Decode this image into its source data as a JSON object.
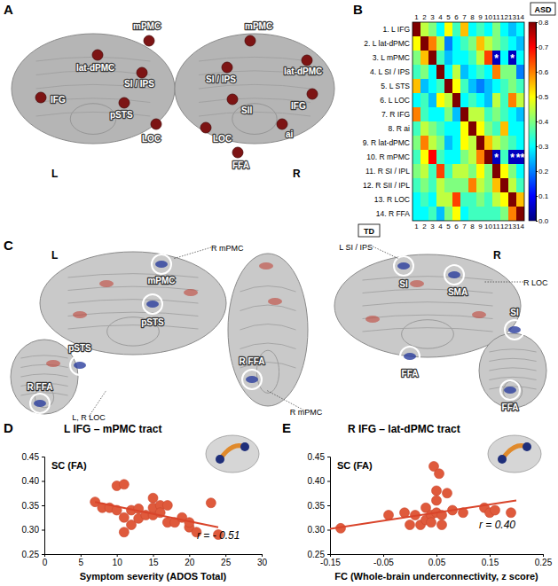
{
  "chart_data": [
    {
      "type": "heatmap",
      "rows": [
        "1. L IFG",
        "2. L lat-dPMC",
        "3. L mPMC",
        "4. L SI / IPS",
        "5. L STS",
        "6. L LOC",
        "7. R IFG",
        "8. R ai",
        "9. R lat-dPMC",
        "10. R mPMC",
        "11. R SI / IPL",
        "12. R SII / IPL",
        "13. R LOC",
        "14. R FFA"
      ],
      "columns": [
        1,
        2,
        3,
        4,
        5,
        6,
        7,
        8,
        9,
        10,
        11,
        12,
        13,
        14
      ],
      "cells": [
        [
          0.8,
          0.45,
          0.4,
          0.3,
          0.5,
          0.35,
          0.55,
          0.3,
          0.35,
          0.3,
          0.4,
          0.3,
          0.25,
          0.3
        ],
        [
          0.5,
          0.8,
          0.6,
          0.45,
          0.2,
          0.3,
          0.35,
          0.4,
          0.55,
          0.45,
          0.4,
          0.35,
          0.3,
          0.25
        ],
        [
          0.4,
          0.55,
          0.8,
          0.35,
          0.25,
          0.3,
          0.3,
          0.35,
          0.45,
          0.65,
          0.05,
          0.3,
          0.05,
          0.3
        ],
        [
          0.35,
          0.4,
          0.3,
          0.8,
          0.3,
          0.45,
          0.25,
          0.3,
          0.35,
          0.3,
          0.6,
          0.4,
          0.4,
          0.2
        ],
        [
          0.55,
          0.25,
          0.3,
          0.35,
          0.8,
          0.5,
          0.35,
          0.25,
          0.2,
          0.25,
          0.3,
          0.35,
          0.4,
          0.35
        ],
        [
          0.3,
          0.35,
          0.25,
          0.5,
          0.45,
          0.8,
          0.3,
          0.35,
          0.3,
          0.25,
          0.45,
          0.35,
          0.6,
          0.45
        ],
        [
          0.6,
          0.35,
          0.3,
          0.3,
          0.4,
          0.25,
          0.8,
          0.45,
          0.45,
          0.35,
          0.4,
          0.35,
          0.3,
          0.25
        ],
        [
          0.35,
          0.45,
          0.4,
          0.35,
          0.3,
          0.3,
          0.5,
          0.8,
          0.5,
          0.4,
          0.35,
          0.55,
          0.3,
          0.3
        ],
        [
          0.4,
          0.6,
          0.45,
          0.4,
          0.25,
          0.3,
          0.5,
          0.45,
          0.8,
          0.55,
          0.45,
          0.4,
          0.35,
          0.3
        ],
        [
          0.35,
          0.5,
          0.7,
          0.35,
          0.3,
          0.3,
          0.4,
          0.45,
          0.6,
          0.8,
          0.05,
          0.35,
          0.05,
          0.05
        ],
        [
          0.4,
          0.45,
          0.35,
          0.65,
          0.35,
          0.45,
          0.45,
          0.4,
          0.5,
          0.4,
          0.8,
          0.5,
          0.4,
          0.3
        ],
        [
          0.35,
          0.4,
          0.35,
          0.45,
          0.4,
          0.4,
          0.4,
          0.6,
          0.45,
          0.4,
          0.55,
          0.8,
          0.45,
          0.35
        ],
        [
          0.3,
          0.35,
          0.3,
          0.45,
          0.45,
          0.65,
          0.35,
          0.35,
          0.4,
          0.35,
          0.45,
          0.5,
          0.8,
          0.55
        ],
        [
          0.3,
          0.3,
          0.35,
          0.25,
          0.4,
          0.5,
          0.3,
          0.35,
          0.35,
          0.35,
          0.35,
          0.4,
          0.6,
          0.8
        ]
      ],
      "colorbar": {
        "range": [
          0,
          0.8
        ],
        "ticks": [
          {
            "value": 0,
            "label": "0.0"
          },
          {
            "value": 0.1,
            "label": "0.1"
          },
          {
            "value": 0.2,
            "label": "0.2"
          },
          {
            "value": 0.3,
            "label": "0.3"
          },
          {
            "value": 0.4,
            "label": "0.4"
          },
          {
            "value": 0.5,
            "label": "0.5"
          },
          {
            "value": 0.6,
            "label": "0.6"
          },
          {
            "value": 0.7,
            "label": "0.7"
          },
          {
            "value": 0.8,
            "label": "0.8"
          }
        ]
      },
      "annotations": [
        {
          "row": 3,
          "col": 11,
          "text": "*"
        },
        {
          "row": 3,
          "col": 13,
          "text": "*"
        },
        {
          "row": 10,
          "col": 11,
          "text": "*"
        },
        {
          "row": 10,
          "col": 13,
          "text": "*"
        },
        {
          "row": 10,
          "col": 14,
          "text": "**"
        }
      ],
      "upper_label": "ASD",
      "lower_label": "TD"
    },
    {
      "type": "scatter",
      "title": "L IFG – mPMC tract",
      "xlabel": "Symptom severity (ADOS Total)",
      "ylabel": "SC (FA)",
      "annotation": "r = - 0.51",
      "xlim": [
        0,
        30
      ],
      "xticks": [
        0,
        5,
        10,
        15,
        20,
        25,
        30
      ],
      "ylim": [
        0.25,
        0.45
      ],
      "yticks": [
        {
          "value": 0.25,
          "label": "0.25"
        },
        {
          "value": 0.3,
          "label": "0.30"
        },
        {
          "value": 0.35,
          "label": "0.35"
        },
        {
          "value": 0.4,
          "label": "0.40"
        },
        {
          "value": 0.45,
          "label": "0.45"
        }
      ],
      "series": [
        {
          "type": "scatter",
          "marker": "circle",
          "color": "#df5a3c",
          "x": [
            7,
            8,
            9,
            10,
            10,
            11,
            11,
            11,
            12,
            12,
            13,
            13,
            14,
            15,
            15,
            15,
            16,
            16,
            17,
            17,
            18,
            19,
            20,
            20,
            21,
            23,
            24
          ],
          "values": [
            0.357,
            0.345,
            0.345,
            0.39,
            0.34,
            0.393,
            0.325,
            0.295,
            0.34,
            0.31,
            0.343,
            0.323,
            0.33,
            0.365,
            0.33,
            0.345,
            0.35,
            0.335,
            0.315,
            0.35,
            0.315,
            0.325,
            0.305,
            0.315,
            0.295,
            0.355,
            0.29
          ]
        },
        {
          "type": "line",
          "line_style": "solid",
          "color": "#d9442a",
          "x": [
            7,
            24
          ],
          "values": [
            0.357,
            0.305
          ]
        }
      ]
    },
    {
      "type": "scatter",
      "title": "R IFG – lat-dPMC tract",
      "xlabel": "FC (Whole-brain underconnectivity, z score)",
      "ylabel": "SC (FA)",
      "annotation": "r = 0.40",
      "xlim": [
        -0.15,
        0.25
      ],
      "xticks": [
        -0.15,
        -0.05,
        0.05,
        0.15,
        0.25
      ],
      "ylim": [
        0.25,
        0.45
      ],
      "yticks": [
        {
          "value": 0.25,
          "label": "0.25"
        },
        {
          "value": 0.3,
          "label": "0.30"
        },
        {
          "value": 0.35,
          "label": "0.35"
        },
        {
          "value": 0.4,
          "label": "0.40"
        },
        {
          "value": 0.45,
          "label": "0.45"
        }
      ],
      "series": [
        {
          "type": "scatter",
          "marker": "circle",
          "color": "#df5a3c",
          "x": [
            -0.13,
            -0.04,
            -0.01,
            0.0,
            0.01,
            0.02,
            0.03,
            0.03,
            0.04,
            0.04,
            0.045,
            0.05,
            0.05,
            0.05,
            0.055,
            0.06,
            0.06,
            0.07,
            0.08,
            0.1,
            0.14,
            0.15,
            0.16,
            0.19
          ],
          "values": [
            0.303,
            0.33,
            0.335,
            0.31,
            0.33,
            0.31,
            0.345,
            0.32,
            0.33,
            0.315,
            0.43,
            0.335,
            0.38,
            0.36,
            0.415,
            0.33,
            0.31,
            0.375,
            0.34,
            0.335,
            0.345,
            0.335,
            0.34,
            0.335
          ]
        },
        {
          "type": "line",
          "line_style": "solid",
          "color": "#d9442a",
          "x": [
            -0.15,
            0.2
          ],
          "values": [
            0.302,
            0.36
          ]
        }
      ]
    }
  ],
  "figure": {
    "panel_labels": [
      "A",
      "B",
      "C",
      "D",
      "E"
    ],
    "panel_a": {
      "hemispheres": [
        "L",
        "R"
      ],
      "left_regions": [
        "mPMC",
        "lat-dPMC",
        "SI / IPS",
        "IFG",
        "pSTS",
        "LOC"
      ],
      "right_regions": [
        "mPMC",
        "lat-dPMC",
        "SI / IPS",
        "SII",
        "IFG",
        "LOC",
        "ai",
        "FFA"
      ]
    },
    "panel_c": {
      "hemispheres": [
        "L",
        "R"
      ],
      "circled": [
        "mPMC",
        "pSTS",
        "R FFA",
        "pSTS",
        "R FFA",
        "SI",
        "SMA",
        "FFA",
        "SI",
        "FFA"
      ],
      "callouts": [
        "R mPMC",
        "L, R LOC",
        "R mPMC",
        "L SI / IPS",
        "R LOC"
      ]
    }
  }
}
